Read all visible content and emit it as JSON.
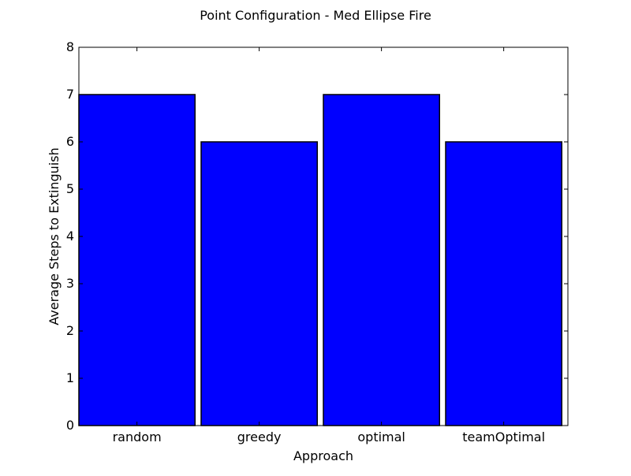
{
  "chart_data": {
    "type": "bar",
    "title": "Point Configuration - Med Ellipse Fire",
    "xlabel": "Approach",
    "ylabel": "Average Steps to Extinguish",
    "categories": [
      "random",
      "greedy",
      "optimal",
      "teamOptimal"
    ],
    "values": [
      7,
      6,
      7,
      6
    ],
    "ylim": [
      0,
      8
    ],
    "yticks": [
      "0",
      "1",
      "2",
      "3",
      "4",
      "5",
      "6",
      "7",
      "8"
    ],
    "bar_color": "#0000ff",
    "edge_color": "#000000",
    "grid": false,
    "legend": "none"
  }
}
